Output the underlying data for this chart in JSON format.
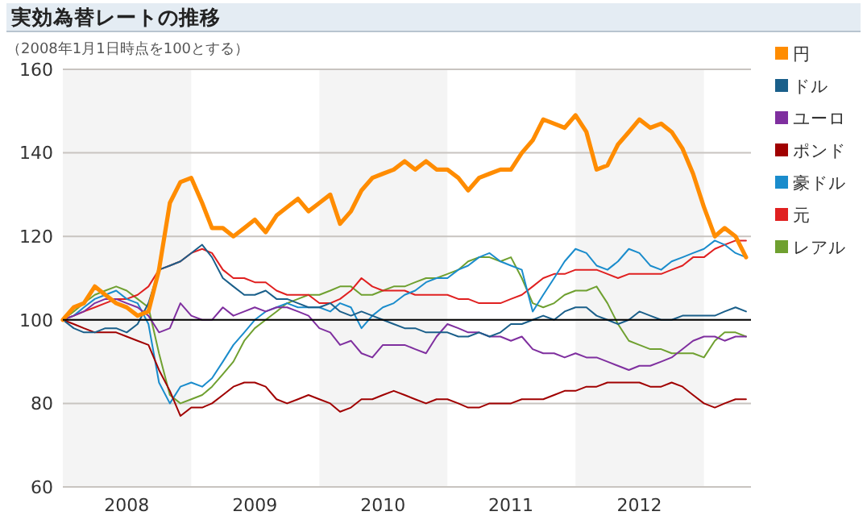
{
  "chart_data": {
    "type": "line",
    "title": "実効為替レートの推移",
    "subtitle": "（2008年1月1日時点を100とする）",
    "x": [
      "2008-01",
      "2008-02",
      "2008-03",
      "2008-04",
      "2008-05",
      "2008-06",
      "2008-07",
      "2008-08",
      "2008-09",
      "2008-10",
      "2008-11",
      "2008-12",
      "2009-01",
      "2009-02",
      "2009-03",
      "2009-04",
      "2009-05",
      "2009-06",
      "2009-07",
      "2009-08",
      "2009-09",
      "2009-10",
      "2009-11",
      "2009-12",
      "2010-01",
      "2010-02",
      "2010-03",
      "2010-04",
      "2010-05",
      "2010-06",
      "2010-07",
      "2010-08",
      "2010-09",
      "2010-10",
      "2010-11",
      "2010-12",
      "2011-01",
      "2011-02",
      "2011-03",
      "2011-04",
      "2011-05",
      "2011-06",
      "2011-07",
      "2011-08",
      "2011-09",
      "2011-10",
      "2011-11",
      "2011-12",
      "2012-01",
      "2012-02",
      "2012-03",
      "2012-04",
      "2012-05",
      "2012-06",
      "2012-07",
      "2012-08",
      "2012-09",
      "2012-10",
      "2012-11",
      "2012-12",
      "2013-01",
      "2013-02",
      "2013-03",
      "2013-04",
      "2013-05"
    ],
    "series": [
      {
        "name": "円",
        "color": "#ff8c00",
        "values": [
          100,
          103,
          104,
          108,
          106,
          104,
          103,
          101,
          102,
          112,
          128,
          133,
          134,
          128,
          122,
          122,
          120,
          122,
          124,
          121,
          125,
          127,
          129,
          126,
          128,
          130,
          123,
          126,
          131,
          134,
          135,
          136,
          138,
          136,
          138,
          136,
          136,
          134,
          131,
          134,
          135,
          136,
          136,
          140,
          143,
          148,
          147,
          146,
          149,
          145,
          136,
          137,
          142,
          145,
          148,
          146,
          147,
          145,
          141,
          135,
          127,
          120,
          122,
          120,
          115
        ]
      },
      {
        "name": "ドル",
        "color": "#1a5f8a",
        "values": [
          100,
          98,
          97,
          97,
          98,
          98,
          97,
          99,
          104,
          112,
          113,
          114,
          116,
          118,
          115,
          110,
          108,
          106,
          106,
          107,
          105,
          105,
          104,
          103,
          103,
          104,
          102,
          101,
          102,
          101,
          100,
          99,
          98,
          98,
          97,
          97,
          97,
          96,
          96,
          97,
          96,
          97,
          99,
          99,
          100,
          101,
          100,
          102,
          103,
          103,
          101,
          100,
          99,
          100,
          102,
          101,
          100,
          100,
          101,
          101,
          101,
          101,
          102,
          103,
          102
        ]
      },
      {
        "name": "ユーロ",
        "color": "#7f2f9f",
        "values": [
          100,
          101,
          102,
          104,
          105,
          105,
          104,
          103,
          101,
          97,
          98,
          104,
          101,
          100,
          100,
          103,
          101,
          102,
          103,
          102,
          103,
          103,
          102,
          101,
          98,
          97,
          94,
          95,
          92,
          91,
          94,
          94,
          94,
          93,
          92,
          96,
          99,
          98,
          97,
          97,
          96,
          96,
          95,
          96,
          93,
          92,
          92,
          91,
          92,
          91,
          91,
          90,
          89,
          88,
          89,
          89,
          90,
          91,
          93,
          95,
          96,
          96,
          95,
          96,
          96
        ]
      },
      {
        "name": "ポンド",
        "color": "#a00000",
        "values": [
          100,
          99,
          98,
          97,
          97,
          97,
          96,
          95,
          94,
          88,
          83,
          77,
          79,
          79,
          80,
          82,
          84,
          85,
          85,
          84,
          81,
          80,
          81,
          82,
          81,
          80,
          78,
          79,
          81,
          81,
          82,
          83,
          82,
          81,
          80,
          81,
          81,
          80,
          79,
          79,
          80,
          80,
          80,
          81,
          81,
          81,
          82,
          83,
          83,
          84,
          84,
          85,
          85,
          85,
          85,
          84,
          84,
          85,
          84,
          82,
          80,
          79,
          80,
          81,
          81
        ]
      },
      {
        "name": "豪ドル",
        "color": "#1a8ccc",
        "values": [
          100,
          101,
          103,
          105,
          106,
          107,
          105,
          104,
          99,
          85,
          80,
          84,
          85,
          84,
          86,
          90,
          94,
          97,
          100,
          102,
          103,
          104,
          103,
          103,
          103,
          102,
          104,
          103,
          98,
          101,
          103,
          104,
          106,
          107,
          109,
          110,
          110,
          112,
          113,
          115,
          116,
          114,
          113,
          112,
          102,
          106,
          110,
          114,
          117,
          116,
          113,
          112,
          114,
          117,
          116,
          113,
          112,
          114,
          115,
          116,
          117,
          119,
          118,
          116,
          115
        ]
      },
      {
        "name": "元",
        "color": "#e02020",
        "values": [
          100,
          101,
          102,
          103,
          104,
          105,
          105,
          106,
          108,
          112,
          113,
          114,
          116,
          117,
          116,
          112,
          110,
          110,
          109,
          109,
          107,
          106,
          106,
          106,
          104,
          104,
          105,
          107,
          110,
          108,
          107,
          107,
          107,
          106,
          106,
          106,
          106,
          105,
          105,
          104,
          104,
          104,
          105,
          106,
          108,
          110,
          111,
          111,
          112,
          112,
          112,
          111,
          110,
          111,
          111,
          111,
          111,
          112,
          113,
          115,
          115,
          117,
          118,
          119,
          119
        ]
      },
      {
        "name": "レアル",
        "color": "#6fa030",
        "values": [
          100,
          102,
          104,
          106,
          107,
          108,
          107,
          105,
          103,
          92,
          82,
          80,
          81,
          82,
          84,
          87,
          90,
          95,
          98,
          100,
          102,
          104,
          105,
          106,
          106,
          107,
          108,
          108,
          106,
          106,
          107,
          108,
          108,
          109,
          110,
          110,
          111,
          112,
          114,
          115,
          115,
          114,
          115,
          110,
          104,
          103,
          104,
          106,
          107,
          107,
          108,
          104,
          99,
          95,
          94,
          93,
          93,
          92,
          92,
          92,
          91,
          95,
          97,
          97,
          96
        ]
      }
    ],
    "xlim": [
      "2008-01-01",
      "2013-05-15"
    ],
    "xticks": [
      {
        "value": "2008-07-01",
        "label": "2008"
      },
      {
        "value": "2009-07-01",
        "label": "2009"
      },
      {
        "value": "2010-07-01",
        "label": "2010"
      },
      {
        "value": "2011-07-01",
        "label": "2011"
      },
      {
        "value": "2012-07-01",
        "label": "2012"
      }
    ],
    "ylim": [
      60,
      160
    ],
    "yticks": [
      60,
      80,
      100,
      120,
      140,
      160
    ],
    "grid": "y",
    "ref_lines": [
      {
        "axis": "y",
        "value": 100,
        "color": "#000000"
      }
    ],
    "bands": [
      {
        "axis": "x",
        "from": "2008-01-01",
        "to": "2009-01-01",
        "color": "#f4f4f4"
      },
      {
        "axis": "x",
        "from": "2010-01-01",
        "to": "2011-01-01",
        "color": "#f4f4f4"
      },
      {
        "axis": "x",
        "from": "2012-01-01",
        "to": "2013-01-01",
        "color": "#f4f4f4"
      }
    ],
    "legend": "right",
    "marker": "none",
    "line_style": "solid"
  }
}
